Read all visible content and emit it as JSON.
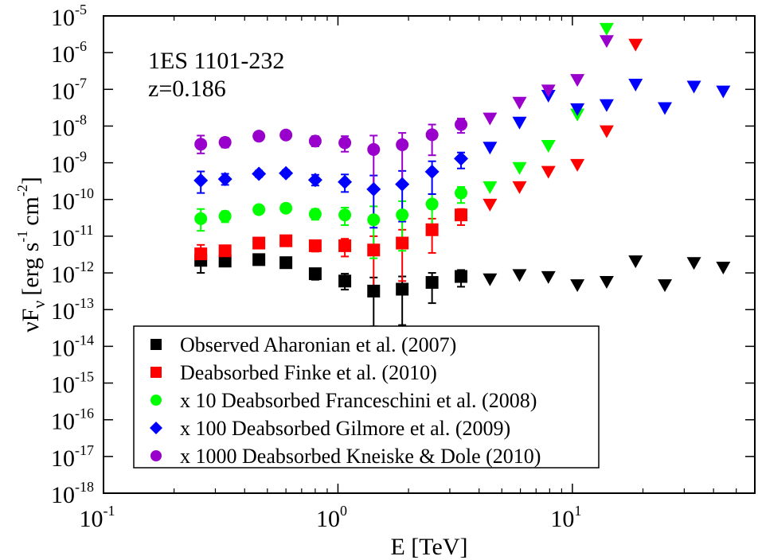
{
  "chart_data": {
    "type": "scatter",
    "title": "",
    "source_label": "1ES 1101-232",
    "redshift_label": "z=0.186",
    "xlabel": "E [TeV]",
    "ylabel": {
      "prefix": "νF",
      "sub": "ν",
      "unit_a": "[erg s",
      "exp_a": "-1",
      "unit_b": "cm",
      "exp_b": "-2",
      "close": "]"
    },
    "x_scale": "log",
    "y_scale": "log",
    "xlim": [
      0.1,
      60
    ],
    "ylim": [
      1e-18,
      1e-05
    ],
    "x_ticks": [
      {
        "value": 0.1,
        "base": "10",
        "exp": "-1"
      },
      {
        "value": 1,
        "base": "10",
        "exp": "0"
      },
      {
        "value": 10,
        "base": "10",
        "exp": "1"
      }
    ],
    "y_ticks": [
      {
        "value": 1e-18,
        "base": "10",
        "exp": "-18"
      },
      {
        "value": 1e-17,
        "base": "10",
        "exp": "-17"
      },
      {
        "value": 1e-16,
        "base": "10",
        "exp": "-16"
      },
      {
        "value": 1e-15,
        "base": "10",
        "exp": "-15"
      },
      {
        "value": 1e-14,
        "base": "10",
        "exp": "-14"
      },
      {
        "value": 1e-13,
        "base": "10",
        "exp": "-13"
      },
      {
        "value": 1e-12,
        "base": "10",
        "exp": "-12"
      },
      {
        "value": 1e-11,
        "base": "10",
        "exp": "-11"
      },
      {
        "value": 1e-10,
        "base": "10",
        "exp": "-10"
      },
      {
        "value": 1e-09,
        "base": "10",
        "exp": "-9"
      },
      {
        "value": 1e-08,
        "base": "10",
        "exp": "-8"
      },
      {
        "value": 1e-07,
        "base": "10",
        "exp": "-7"
      },
      {
        "value": 1e-06,
        "base": "10",
        "exp": "-6"
      },
      {
        "value": 1e-05,
        "base": "10",
        "exp": "-5"
      }
    ],
    "legend_position": "bottom-left",
    "series": [
      {
        "name": "Observed Aharonian et al. (2007)",
        "color": "#000000",
        "marker": "square",
        "points": [
          {
            "x": 0.26,
            "y": 2.2e-12,
            "lo": 1e-12,
            "hi": 4e-12
          },
          {
            "x": 0.33,
            "y": 2.1e-12,
            "lo": 1.5e-12,
            "hi": 3e-12
          },
          {
            "x": 0.46,
            "y": 2.3e-12,
            "lo": 1.9e-12,
            "hi": 2.7e-12
          },
          {
            "x": 0.6,
            "y": 1.9e-12,
            "lo": 1.6e-12,
            "hi": 2.2e-12
          },
          {
            "x": 0.8,
            "y": 9.5e-13,
            "lo": 6.5e-13,
            "hi": 1.3e-12
          },
          {
            "x": 1.07,
            "y": 6e-13,
            "lo": 3.5e-13,
            "hi": 9.5e-13
          },
          {
            "x": 1.42,
            "y": 3.2e-13,
            "lo": 3.5e-14,
            "hi": 7.5e-13
          },
          {
            "x": 1.88,
            "y": 3.6e-13,
            "lo": 3.8e-14,
            "hi": 8e-13
          },
          {
            "x": 2.52,
            "y": 5.5e-13,
            "lo": 1.5e-13,
            "hi": 1e-12
          },
          {
            "x": 3.35,
            "y": 8e-13,
            "lo": 4.2e-13,
            "hi": 1.2e-12
          }
        ],
        "upper_limits": [
          {
            "x": 4.45,
            "y": 6.5e-13
          },
          {
            "x": 5.95,
            "y": 8.5e-13
          },
          {
            "x": 7.9,
            "y": 7.5e-13
          },
          {
            "x": 10.5,
            "y": 4.5e-13
          },
          {
            "x": 14.0,
            "y": 5.5e-13
          },
          {
            "x": 18.6,
            "y": 2e-12
          },
          {
            "x": 24.8,
            "y": 4.5e-13
          },
          {
            "x": 33.0,
            "y": 1.8e-12
          },
          {
            "x": 44.0,
            "y": 1.35e-12
          }
        ]
      },
      {
        "name": "Deabsorbed Finke et al. (2010)",
        "color": "#ff0000",
        "marker": "square",
        "points": [
          {
            "x": 0.26,
            "y": 3.3e-12,
            "lo": 1.8e-12,
            "hi": 5.8e-12
          },
          {
            "x": 0.33,
            "y": 4e-12,
            "lo": 2.8e-12,
            "hi": 5.5e-12
          },
          {
            "x": 0.46,
            "y": 6.5e-12,
            "lo": 5.3e-12,
            "hi": 7.8e-12
          },
          {
            "x": 0.6,
            "y": 7.5e-12,
            "lo": 6.3e-12,
            "hi": 9e-12
          },
          {
            "x": 0.8,
            "y": 5.5e-12,
            "lo": 3.8e-12,
            "hi": 7.5e-12
          },
          {
            "x": 1.07,
            "y": 5.5e-12,
            "lo": 2.8e-12,
            "hi": 8.5e-12
          },
          {
            "x": 1.42,
            "y": 4.2e-12,
            "lo": 3.5e-13,
            "hi": 1e-11
          },
          {
            "x": 1.88,
            "y": 6.5e-12,
            "lo": 6e-13,
            "hi": 1.5e-11
          },
          {
            "x": 2.52,
            "y": 1.5e-11,
            "lo": 3.5e-12,
            "hi": 3e-11
          },
          {
            "x": 3.35,
            "y": 3.8e-11,
            "lo": 2e-11,
            "hi": 5.5e-11
          }
        ],
        "upper_limits": [
          {
            "x": 4.45,
            "y": 7e-11
          },
          {
            "x": 5.95,
            "y": 2.1e-10
          },
          {
            "x": 7.9,
            "y": 5.5e-10
          },
          {
            "x": 10.5,
            "y": 8.5e-10
          },
          {
            "x": 14.0,
            "y": 7e-09
          },
          {
            "x": 18.6,
            "y": 1.6e-06
          }
        ]
      },
      {
        "name": "x 10 Deabsorbed Franceschini et al. (2008)",
        "color": "#00ff00",
        "marker": "circle",
        "points": [
          {
            "x": 0.26,
            "y": 3e-11,
            "lo": 1.4e-11,
            "hi": 5.5e-11
          },
          {
            "x": 0.33,
            "y": 3.5e-11,
            "lo": 2.4e-11,
            "hi": 4.8e-11
          },
          {
            "x": 0.46,
            "y": 5.3e-11,
            "lo": 4.3e-11,
            "hi": 6.5e-11
          },
          {
            "x": 0.6,
            "y": 5.8e-11,
            "lo": 4.8e-11,
            "hi": 7e-11
          },
          {
            "x": 0.8,
            "y": 4e-11,
            "lo": 2.8e-11,
            "hi": 5.5e-11
          },
          {
            "x": 1.07,
            "y": 3.8e-11,
            "lo": 2e-11,
            "hi": 6e-11
          },
          {
            "x": 1.42,
            "y": 2.8e-11,
            "lo": 2.5e-12,
            "hi": 6.5e-11
          },
          {
            "x": 1.88,
            "y": 3.8e-11,
            "lo": 4e-12,
            "hi": 9e-11
          },
          {
            "x": 2.52,
            "y": 7.5e-11,
            "lo": 1.8e-11,
            "hi": 1.4e-10
          },
          {
            "x": 3.35,
            "y": 1.5e-10,
            "lo": 8e-11,
            "hi": 2.2e-10
          }
        ],
        "upper_limits": [
          {
            "x": 4.45,
            "y": 2.1e-10
          },
          {
            "x": 5.95,
            "y": 7e-10
          },
          {
            "x": 7.9,
            "y": 2.8e-09
          },
          {
            "x": 10.5,
            "y": 2e-08
          },
          {
            "x": 14.0,
            "y": 4.3e-06
          }
        ]
      },
      {
        "name": "x 100 Deabsorbed Gilmore et al. (2009)",
        "color": "#0000ff",
        "marker": "diamond",
        "points": [
          {
            "x": 0.26,
            "y": 3.3e-10,
            "lo": 1.5e-10,
            "hi": 5.8e-10
          },
          {
            "x": 0.33,
            "y": 3.6e-10,
            "lo": 2.5e-10,
            "hi": 5e-10
          },
          {
            "x": 0.46,
            "y": 5e-10,
            "lo": 4.1e-10,
            "hi": 6.1e-10
          },
          {
            "x": 0.6,
            "y": 5.2e-10,
            "lo": 4.3e-10,
            "hi": 6.3e-10
          },
          {
            "x": 0.8,
            "y": 3.4e-10,
            "lo": 2.4e-10,
            "hi": 4.7e-10
          },
          {
            "x": 1.07,
            "y": 3e-10,
            "lo": 1.6e-10,
            "hi": 4.8e-10
          },
          {
            "x": 1.42,
            "y": 1.9e-10,
            "lo": 1.7e-11,
            "hi": 4.5e-10
          },
          {
            "x": 1.88,
            "y": 2.6e-10,
            "lo": 2.5e-11,
            "hi": 6e-10
          },
          {
            "x": 2.52,
            "y": 5.7e-10,
            "lo": 1.4e-10,
            "hi": 1.1e-09
          },
          {
            "x": 3.35,
            "y": 1.3e-09,
            "lo": 7e-10,
            "hi": 1.9e-09
          }
        ],
        "upper_limits": [
          {
            "x": 4.45,
            "y": 2.5e-09
          },
          {
            "x": 5.95,
            "y": 1.2e-08
          },
          {
            "x": 7.9,
            "y": 6.5e-08
          },
          {
            "x": 10.5,
            "y": 2.8e-08
          },
          {
            "x": 14.0,
            "y": 3.6e-08
          },
          {
            "x": 18.6,
            "y": 1.3e-07
          },
          {
            "x": 24.8,
            "y": 3e-08
          },
          {
            "x": 33.0,
            "y": 1.15e-07
          },
          {
            "x": 44.0,
            "y": 8.5e-08
          }
        ]
      },
      {
        "name": "x 1000 Deabsorbed Kneiske & Dole (2010)",
        "color": "#9900cc",
        "marker": "circle",
        "points": [
          {
            "x": 0.26,
            "y": 3.2e-09,
            "lo": 1.8e-09,
            "hi": 5.5e-09
          },
          {
            "x": 0.33,
            "y": 3.6e-09,
            "lo": 2.6e-09,
            "hi": 4.8e-09
          },
          {
            "x": 0.46,
            "y": 5.3e-09,
            "lo": 4.5e-09,
            "hi": 6.3e-09
          },
          {
            "x": 0.6,
            "y": 5.7e-09,
            "lo": 4.9e-09,
            "hi": 6.7e-09
          },
          {
            "x": 0.8,
            "y": 3.9e-09,
            "lo": 2.8e-09,
            "hi": 5.3e-09
          },
          {
            "x": 1.07,
            "y": 3.5e-09,
            "lo": 2e-09,
            "hi": 5.3e-09
          },
          {
            "x": 1.42,
            "y": 2.3e-09,
            "lo": 2.2e-10,
            "hi": 5.5e-09
          },
          {
            "x": 1.88,
            "y": 3.1e-09,
            "lo": 3e-10,
            "hi": 6.5e-09
          },
          {
            "x": 2.52,
            "y": 5.8e-09,
            "lo": 1.6e-09,
            "hi": 1.1e-08
          },
          {
            "x": 3.35,
            "y": 1.1e-08,
            "lo": 6.5e-09,
            "hi": 1.6e-08
          }
        ],
        "upper_limits": [
          {
            "x": 4.45,
            "y": 1.55e-08
          },
          {
            "x": 5.95,
            "y": 4.2e-08
          },
          {
            "x": 7.9,
            "y": 9e-08
          },
          {
            "x": 10.5,
            "y": 1.75e-07
          },
          {
            "x": 14.0,
            "y": 2e-06
          }
        ]
      }
    ]
  }
}
